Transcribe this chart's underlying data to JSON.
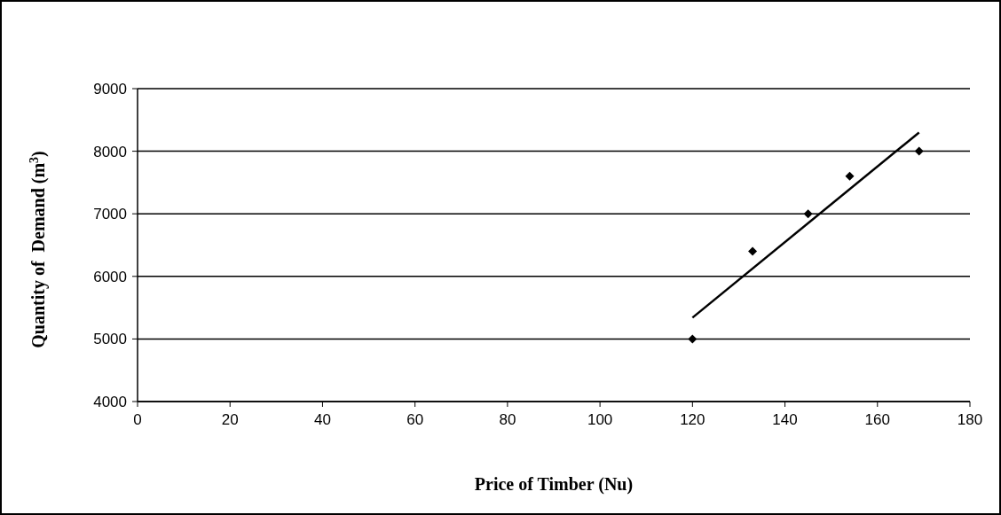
{
  "chart_data": {
    "type": "scatter",
    "xlabel": "Price of Timber (Nu)",
    "ylabel": "Quantity of  Demand (m$^{3}$)",
    "xlim": [
      0,
      180
    ],
    "xticks": [
      0,
      20,
      40,
      60,
      80,
      100,
      120,
      140,
      160,
      180
    ],
    "ylim": [
      4000,
      9000
    ],
    "yticks": [
      4000,
      5000,
      6000,
      7000,
      8000,
      9000
    ],
    "grid": "y",
    "marker": "diamond",
    "series": [
      {
        "color": "#000000",
        "x": [
          120,
          133,
          145,
          154,
          169
        ],
        "values": [
          5000,
          6400,
          7000,
          7600,
          8000
        ]
      },
      {
        "type": "line",
        "color": "#000000",
        "marker": "none",
        "x": [
          120,
          169
        ],
        "values": [
          5340,
          8300
        ]
      }
    ]
  }
}
